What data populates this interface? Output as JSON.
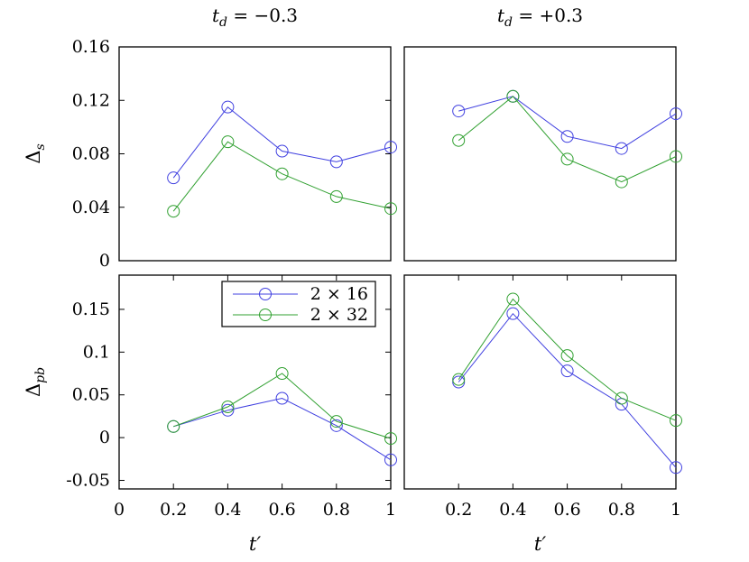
{
  "chart_data": [
    {
      "type": "line",
      "panel": "top-left",
      "title": "t_d = −0.3",
      "title_parts": {
        "base": "t",
        "sub": "d",
        "rest": " = −0.3"
      },
      "xlabel": "",
      "ylabel": "Δ_s",
      "ylabel_parts": {
        "base": "Δ",
        "sub": "s"
      },
      "xlim": [
        0,
        1
      ],
      "ylim": [
        0,
        0.16
      ],
      "xticks": [],
      "yticks": [
        0,
        0.04,
        0.08,
        0.12,
        0.16
      ],
      "ytick_labels": [
        "0",
        "0.04",
        "0.08",
        "0.12",
        "0.16"
      ],
      "series": [
        {
          "name": "2 × 16",
          "color": "#4040e0",
          "x": [
            0.2,
            0.4,
            0.6,
            0.8,
            1.0
          ],
          "y": [
            0.062,
            0.115,
            0.082,
            0.074,
            0.085
          ]
        },
        {
          "name": "2 × 32",
          "color": "#30a030",
          "x": [
            0.2,
            0.4,
            0.6,
            0.8,
            1.0
          ],
          "y": [
            0.037,
            0.089,
            0.065,
            0.048,
            0.039
          ]
        }
      ]
    },
    {
      "type": "line",
      "panel": "top-right",
      "title": "t_d = +0.3",
      "title_parts": {
        "base": "t",
        "sub": "d",
        "rest": " = +0.3"
      },
      "xlabel": "",
      "ylabel": "",
      "xlim": [
        0,
        1
      ],
      "ylim": [
        0,
        0.16
      ],
      "xticks": [],
      "yticks": [],
      "series": [
        {
          "name": "2 × 16",
          "color": "#4040e0",
          "x": [
            0.2,
            0.4,
            0.6,
            0.8,
            1.0
          ],
          "y": [
            0.112,
            0.123,
            0.093,
            0.084,
            0.11
          ]
        },
        {
          "name": "2 × 32",
          "color": "#30a030",
          "x": [
            0.2,
            0.4,
            0.6,
            0.8,
            1.0
          ],
          "y": [
            0.09,
            0.123,
            0.076,
            0.059,
            0.078
          ]
        }
      ]
    },
    {
      "type": "line",
      "panel": "bottom-left",
      "title": "",
      "xlabel": "t′",
      "ylabel": "Δ_pb",
      "ylabel_parts": {
        "base": "Δ",
        "sub": "pb"
      },
      "xlim": [
        0,
        1
      ],
      "ylim": [
        -0.06,
        0.19
      ],
      "xticks": [
        0,
        0.2,
        0.4,
        0.6,
        0.8,
        1
      ],
      "xtick_labels": [
        "0",
        "0.2",
        "0.4",
        "0.6",
        "0.8",
        "1"
      ],
      "yticks": [
        -0.05,
        0,
        0.05,
        0.1,
        0.15
      ],
      "ytick_labels": [
        "-0.05",
        "0",
        "0.05",
        "0.1",
        "0.15"
      ],
      "legend": {
        "position": "top-right",
        "entries": [
          "2 × 16",
          "2 × 32"
        ]
      },
      "series": [
        {
          "name": "2 × 16",
          "color": "#4040e0",
          "x": [
            0.2,
            0.4,
            0.6,
            0.8,
            1.0
          ],
          "y": [
            0.013,
            0.032,
            0.046,
            0.014,
            -0.026
          ]
        },
        {
          "name": "2 × 32",
          "color": "#30a030",
          "x": [
            0.2,
            0.4,
            0.6,
            0.8,
            1.0
          ],
          "y": [
            0.013,
            0.036,
            0.075,
            0.019,
            -0.001
          ]
        }
      ]
    },
    {
      "type": "line",
      "panel": "bottom-right",
      "title": "",
      "xlabel": "t′",
      "ylabel": "",
      "xlim": [
        0,
        1
      ],
      "ylim": [
        -0.06,
        0.19
      ],
      "xticks": [
        0.2,
        0.4,
        0.6,
        0.8,
        1
      ],
      "xtick_labels": [
        "0.2",
        "0.4",
        "0.6",
        "0.8",
        "1"
      ],
      "yticks": [],
      "series": [
        {
          "name": "2 × 16",
          "color": "#4040e0",
          "x": [
            0.2,
            0.4,
            0.6,
            0.8,
            1.0
          ],
          "y": [
            0.065,
            0.145,
            0.078,
            0.039,
            -0.035
          ]
        },
        {
          "name": "2 × 32",
          "color": "#30a030",
          "x": [
            0.2,
            0.4,
            0.6,
            0.8,
            1.0
          ],
          "y": [
            0.068,
            0.162,
            0.096,
            0.046,
            0.02
          ]
        }
      ]
    }
  ]
}
